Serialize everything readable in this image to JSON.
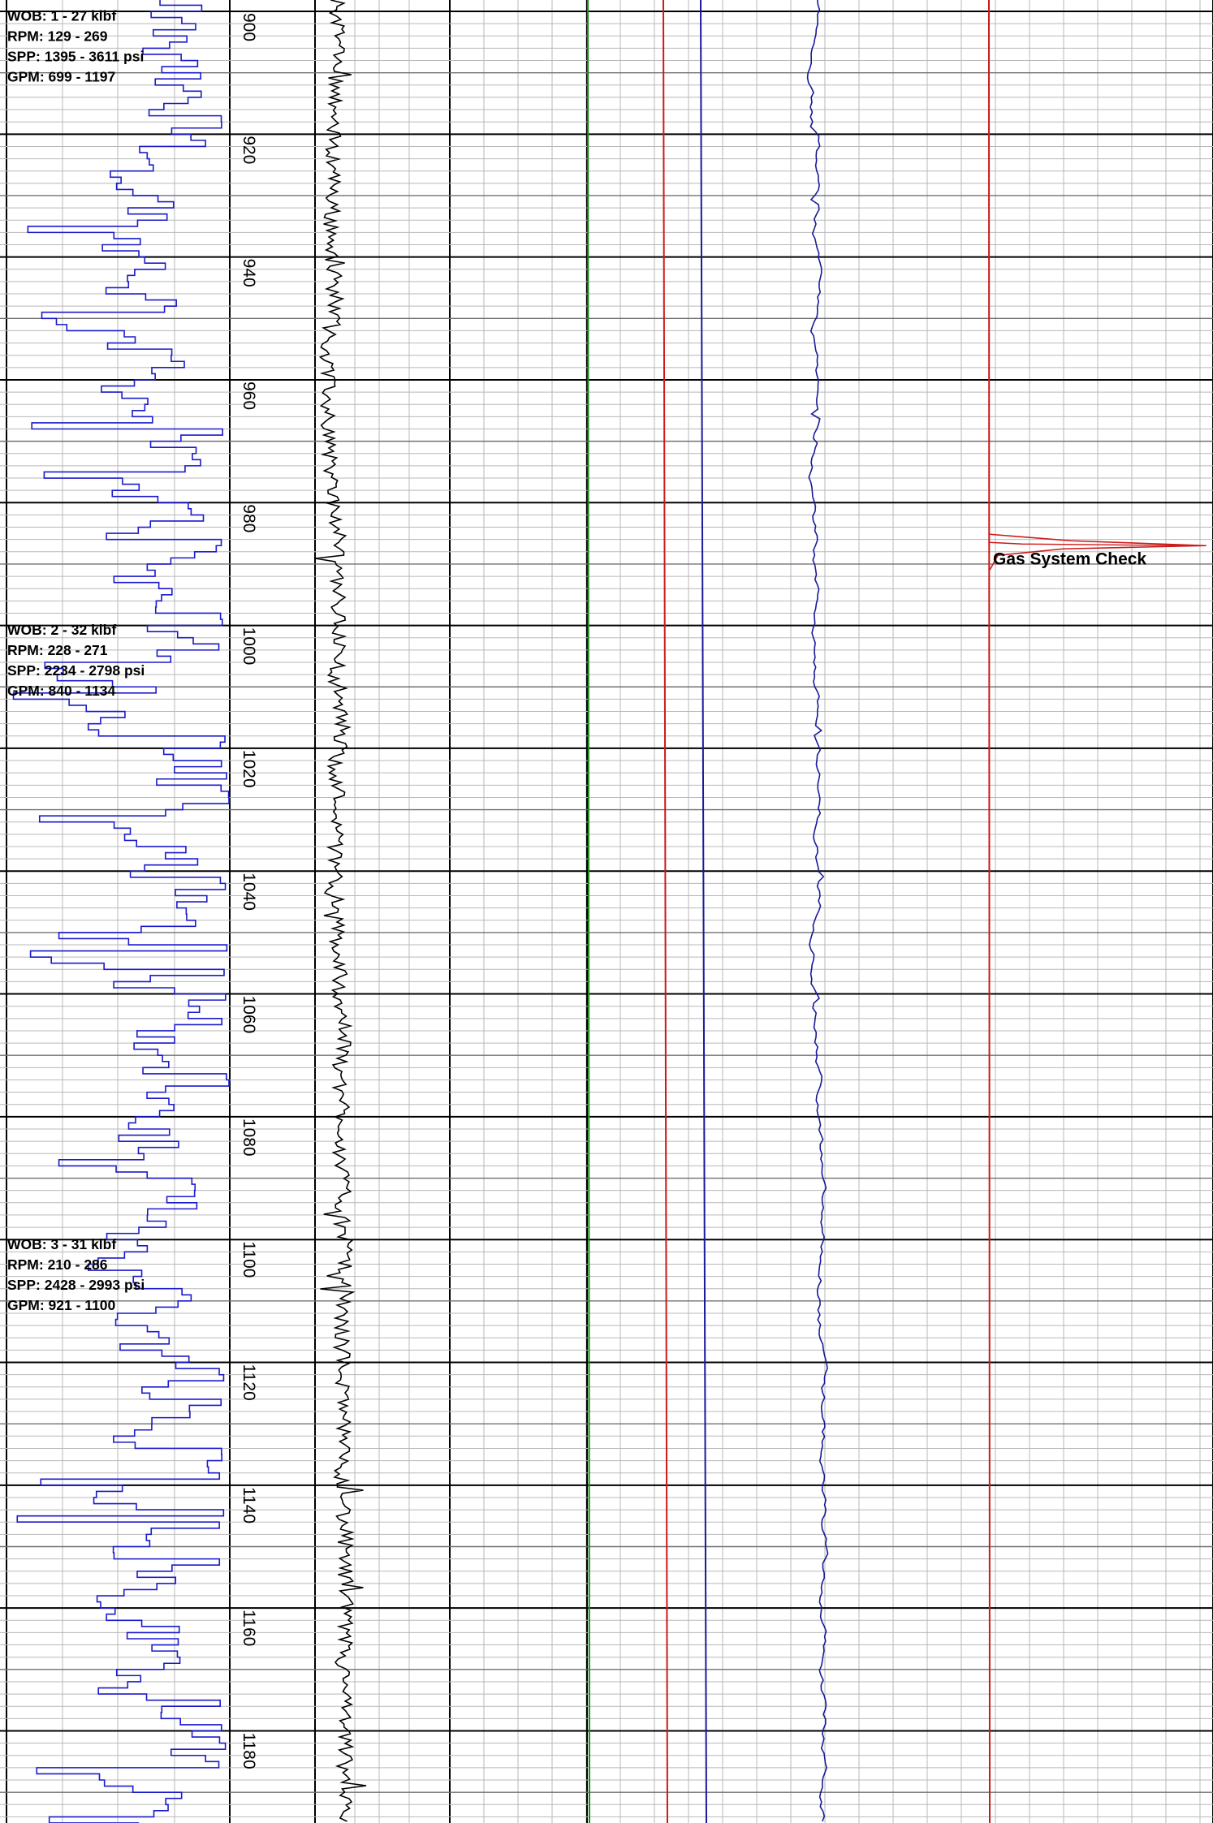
{
  "chart_data": {
    "type": "line",
    "depth_range": [
      900,
      1196
    ],
    "depth_ticks": [
      "900",
      "920",
      "940",
      "960",
      "980",
      "1000",
      "1020",
      "1040",
      "1060",
      "1080",
      "1100",
      "1120",
      "1140",
      "1160",
      "1180"
    ],
    "parameter_blocks": [
      {
        "depth": 901,
        "lines": [
          "WOB: 1 - 27 klbf",
          "RPM: 129 - 269",
          "SPP:  1395 - 3611 psi",
          "GPM: 699 - 1197"
        ]
      },
      {
        "depth": 1001,
        "lines": [
          "WOB: 2 - 32 klbf",
          "RPM: 228 - 271",
          "SPP:  2234 - 2798 psi",
          "GPM: 840 - 1134"
        ]
      },
      {
        "depth": 1101,
        "lines": [
          "WOB: 3 - 31 klbf",
          "RPM: 210 - 286",
          "SPP:  2428 - 2993 psi",
          "GPM: 921 - 1100"
        ]
      }
    ],
    "annotations": [
      {
        "depth": 989,
        "text": "Gas System Check"
      }
    ],
    "gas_peak": {
      "depth": 987,
      "value": 0.97
    },
    "colors": {
      "rop": "#1a1acc",
      "gamma": "#000000",
      "green": "#1a8a1a",
      "red": "#cc1a1a",
      "blue": "#1a1a99",
      "gridMajor": "#000000",
      "gridMinor": "#b8b8b8"
    }
  }
}
